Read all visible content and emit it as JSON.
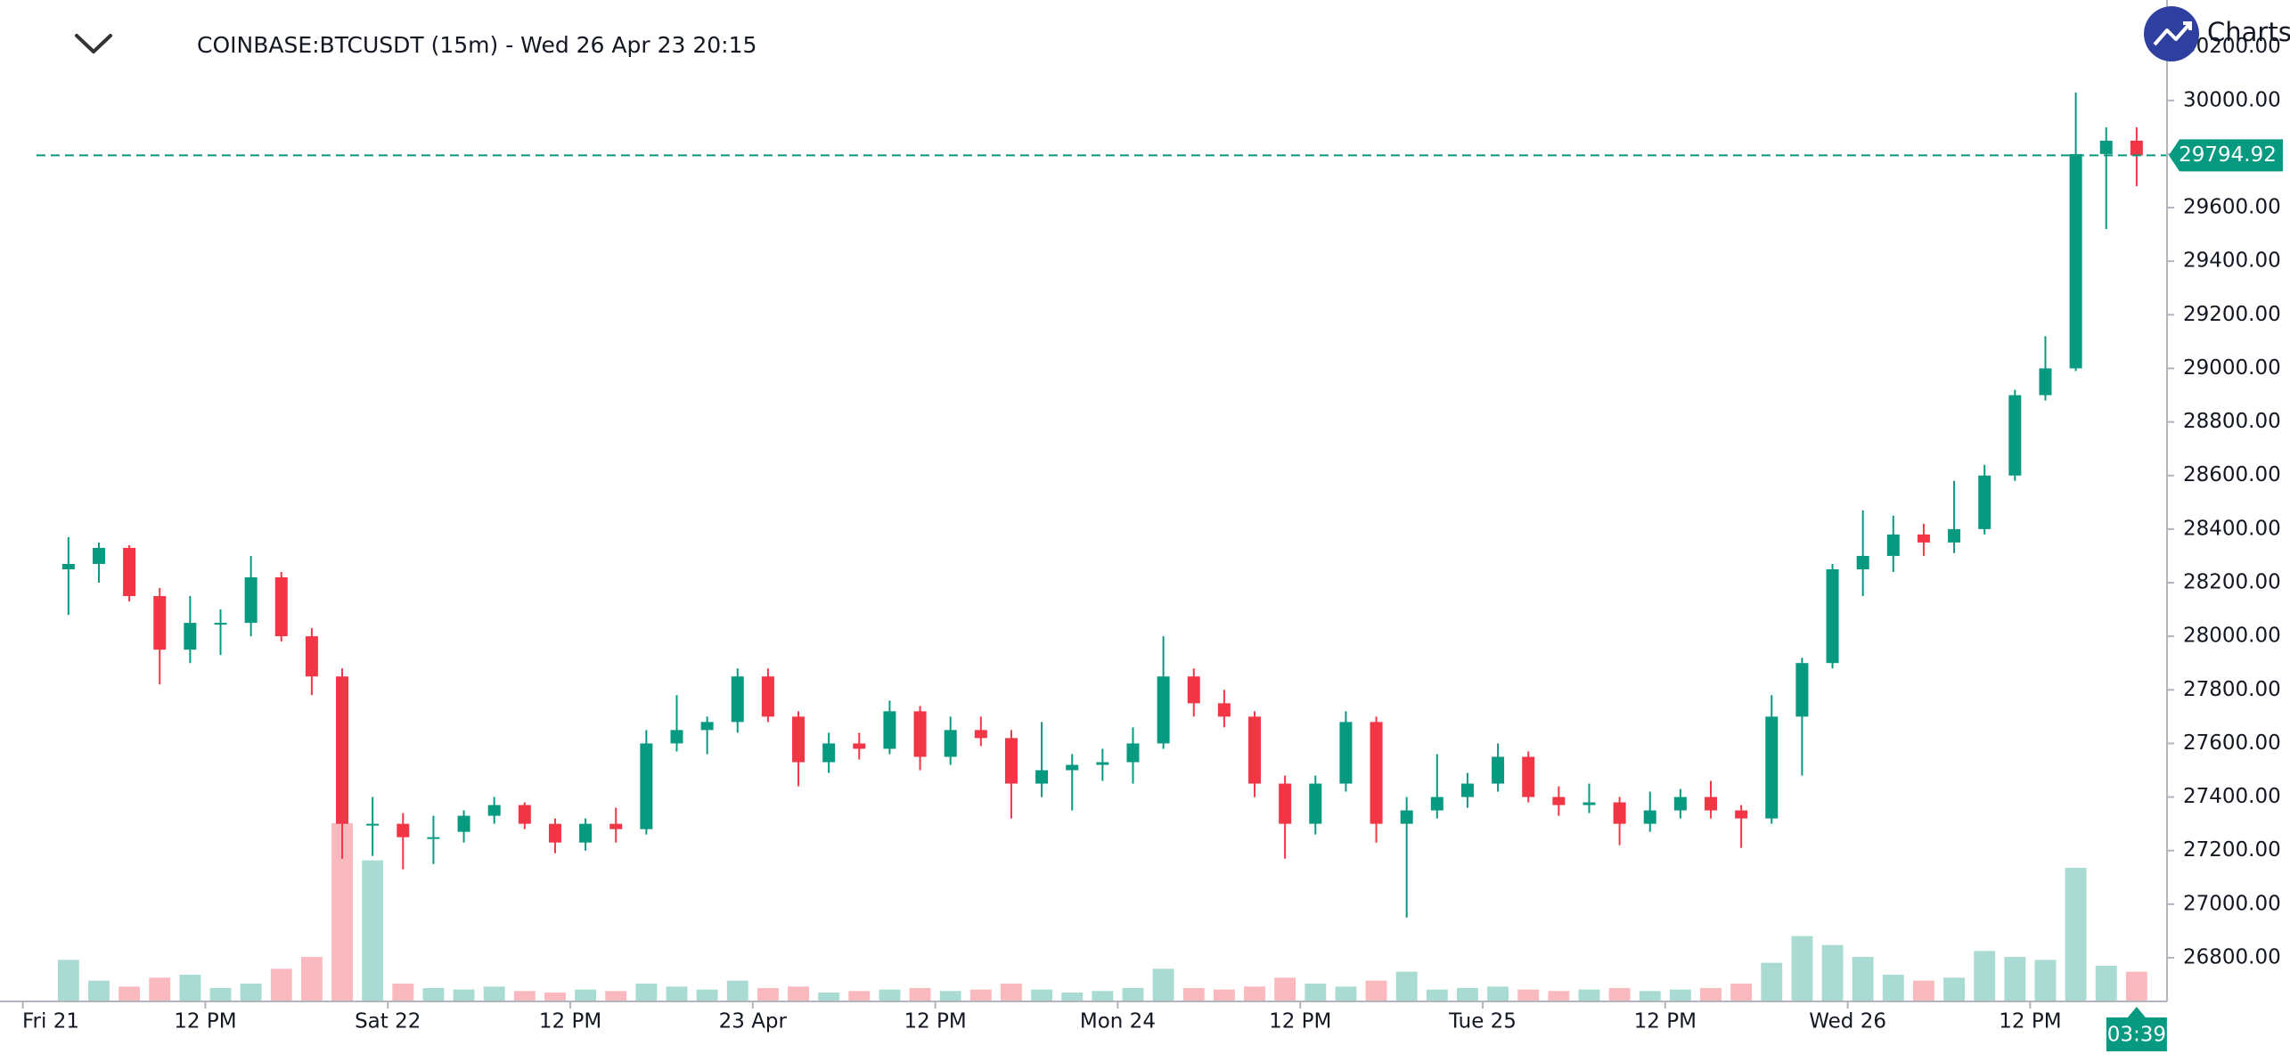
{
  "chart_data": {
    "type": "candlestick",
    "title": "COINBASE:BTCUSDT (15m) - Wed 26 Apr 23 20:15",
    "brand": "Charts",
    "up_color": "#089981",
    "down_color": "#f23645",
    "x": [
      2,
      4,
      6,
      8,
      10,
      12,
      14,
      16,
      18,
      20,
      22,
      24,
      26,
      28,
      30,
      32,
      34,
      36,
      38,
      40,
      42,
      44,
      46,
      48,
      50,
      52,
      54,
      56,
      58,
      60,
      62,
      64,
      66,
      68,
      70,
      72,
      74,
      76,
      78,
      80,
      82,
      84,
      86,
      88,
      90,
      92,
      94,
      96,
      98,
      100,
      102,
      104,
      106,
      108,
      110,
      112,
      114,
      116,
      118,
      120,
      122,
      124,
      126,
      128,
      130,
      132,
      134,
      136,
      138
    ],
    "ohlc": [
      [
        28250,
        28370,
        28080,
        28270
      ],
      [
        28270,
        28350,
        28200,
        28330
      ],
      [
        28330,
        28340,
        28130,
        28150
      ],
      [
        28150,
        28180,
        27820,
        27950
      ],
      [
        27950,
        28150,
        27900,
        28050
      ],
      [
        28050,
        28100,
        27930,
        28050
      ],
      [
        28050,
        28300,
        28000,
        28220
      ],
      [
        28220,
        28240,
        27980,
        28000
      ],
      [
        28000,
        28030,
        27780,
        27850
      ],
      [
        27850,
        27880,
        27170,
        27300
      ],
      [
        27300,
        27400,
        27180,
        27300
      ],
      [
        27300,
        27340,
        27130,
        27250
      ],
      [
        27250,
        27330,
        27150,
        27250
      ],
      [
        27270,
        27350,
        27230,
        27330
      ],
      [
        27330,
        27400,
        27300,
        27370
      ],
      [
        27370,
        27380,
        27280,
        27300
      ],
      [
        27300,
        27320,
        27190,
        27230
      ],
      [
        27230,
        27320,
        27200,
        27300
      ],
      [
        27300,
        27360,
        27230,
        27280
      ],
      [
        27280,
        27650,
        27260,
        27600
      ],
      [
        27600,
        27780,
        27570,
        27650
      ],
      [
        27650,
        27700,
        27560,
        27680
      ],
      [
        27680,
        27880,
        27640,
        27850
      ],
      [
        27850,
        27880,
        27680,
        27700
      ],
      [
        27700,
        27720,
        27440,
        27530
      ],
      [
        27530,
        27640,
        27490,
        27600
      ],
      [
        27600,
        27640,
        27540,
        27580
      ],
      [
        27580,
        27760,
        27560,
        27720
      ],
      [
        27720,
        27740,
        27500,
        27550
      ],
      [
        27550,
        27700,
        27520,
        27650
      ],
      [
        27650,
        27700,
        27590,
        27620
      ],
      [
        27620,
        27650,
        27320,
        27450
      ],
      [
        27450,
        27680,
        27400,
        27500
      ],
      [
        27500,
        27560,
        27350,
        27520
      ],
      [
        27520,
        27580,
        27460,
        27530
      ],
      [
        27530,
        27660,
        27450,
        27600
      ],
      [
        27600,
        28000,
        27580,
        27850
      ],
      [
        27850,
        27880,
        27700,
        27750
      ],
      [
        27750,
        27800,
        27660,
        27700
      ],
      [
        27700,
        27720,
        27400,
        27450
      ],
      [
        27450,
        27480,
        27170,
        27300
      ],
      [
        27300,
        27480,
        27260,
        27450
      ],
      [
        27450,
        27720,
        27420,
        27680
      ],
      [
        27680,
        27700,
        27230,
        27300
      ],
      [
        27300,
        27400,
        26950,
        27350
      ],
      [
        27350,
        27560,
        27320,
        27400
      ],
      [
        27400,
        27490,
        27360,
        27450
      ],
      [
        27450,
        27600,
        27420,
        27550
      ],
      [
        27550,
        27570,
        27380,
        27400
      ],
      [
        27400,
        27440,
        27330,
        27370
      ],
      [
        27370,
        27450,
        27340,
        27380
      ],
      [
        27380,
        27400,
        27220,
        27300
      ],
      [
        27300,
        27420,
        27270,
        27350
      ],
      [
        27350,
        27430,
        27320,
        27400
      ],
      [
        27400,
        27460,
        27320,
        27350
      ],
      [
        27350,
        27370,
        27210,
        27320
      ],
      [
        27320,
        27780,
        27300,
        27700
      ],
      [
        27700,
        27920,
        27480,
        27900
      ],
      [
        27900,
        28270,
        27880,
        28250
      ],
      [
        28250,
        28470,
        28150,
        28300
      ],
      [
        28300,
        28450,
        28240,
        28380
      ],
      [
        28380,
        28420,
        28300,
        28350
      ],
      [
        28350,
        28580,
        28310,
        28400
      ],
      [
        28400,
        28640,
        28380,
        28600
      ],
      [
        28600,
        28920,
        28580,
        28900
      ],
      [
        28900,
        29120,
        28880,
        29000
      ],
      [
        29000,
        30030,
        28990,
        29800
      ],
      [
        29800,
        29900,
        29520,
        29850
      ],
      [
        29850,
        29900,
        29680,
        29794.92
      ]
    ],
    "volume": [
      28,
      14,
      10,
      16,
      18,
      9,
      12,
      22,
      30,
      120,
      95,
      12,
      9,
      8,
      10,
      7,
      6,
      8,
      7,
      12,
      10,
      8,
      14,
      9,
      10,
      6,
      7,
      8,
      9,
      7,
      8,
      12,
      8,
      6,
      7,
      9,
      22,
      9,
      8,
      10,
      16,
      12,
      10,
      14,
      20,
      8,
      9,
      10,
      8,
      7,
      8,
      9,
      7,
      8,
      9,
      12,
      26,
      44,
      38,
      30,
      18,
      14,
      16,
      34,
      30,
      28,
      90,
      24,
      20
    ],
    "xlim": [
      0.9,
      141
    ],
    "xticks": [
      {
        "value": 0,
        "label": "Fri 21"
      },
      {
        "value": 12,
        "label": "12 PM"
      },
      {
        "value": 24,
        "label": "Sat 22"
      },
      {
        "value": 36,
        "label": "12 PM"
      },
      {
        "value": 48,
        "label": "23 Apr"
      },
      {
        "value": 60,
        "label": "12 PM"
      },
      {
        "value": 72,
        "label": "Mon 24"
      },
      {
        "value": 84,
        "label": "12 PM"
      },
      {
        "value": 96,
        "label": "Tue 25"
      },
      {
        "value": 108,
        "label": "12 PM"
      },
      {
        "value": 120,
        "label": "Wed 26"
      },
      {
        "value": 132,
        "label": "12 PM"
      }
    ],
    "ylim": [
      26637,
      30375
    ],
    "yticks": [
      {
        "value": 26800,
        "label": "26800.00"
      },
      {
        "value": 27000,
        "label": "27000.00"
      },
      {
        "value": 27200,
        "label": "27200.00"
      },
      {
        "value": 27400,
        "label": "27400.00"
      },
      {
        "value": 27600,
        "label": "27600.00"
      },
      {
        "value": 27800,
        "label": "27800.00"
      },
      {
        "value": 28000,
        "label": "28000.00"
      },
      {
        "value": 28200,
        "label": "28200.00"
      },
      {
        "value": 28400,
        "label": "28400.00"
      },
      {
        "value": 28600,
        "label": "28600.00"
      },
      {
        "value": 28800,
        "label": "28800.00"
      },
      {
        "value": 29000,
        "label": "29000.00"
      },
      {
        "value": 29200,
        "label": "29200.00"
      },
      {
        "value": 29400,
        "label": "29400.00"
      },
      {
        "value": 29600,
        "label": "29600.00"
      },
      {
        "value": 29800,
        "label": "29800.00"
      },
      {
        "value": 30000,
        "label": "30000.00"
      },
      {
        "value": 30200,
        "label": "30200.00"
      }
    ],
    "grid": false,
    "last_price": {
      "value": 29794.92,
      "label": "29794.92"
    },
    "countdown": "03:39"
  }
}
